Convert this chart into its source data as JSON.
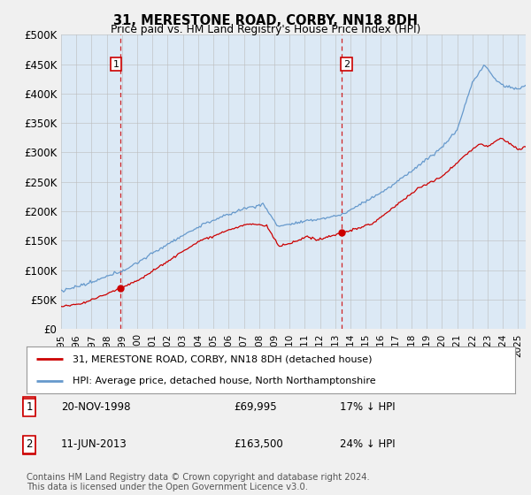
{
  "title": "31, MERESTONE ROAD, CORBY, NN18 8DH",
  "subtitle": "Price paid vs. HM Land Registry's House Price Index (HPI)",
  "ylabel_ticks": [
    "£0",
    "£50K",
    "£100K",
    "£150K",
    "£200K",
    "£250K",
    "£300K",
    "£350K",
    "£400K",
    "£450K",
    "£500K"
  ],
  "ytick_values": [
    0,
    50000,
    100000,
    150000,
    200000,
    250000,
    300000,
    350000,
    400000,
    450000,
    500000
  ],
  "ylim": [
    0,
    500000
  ],
  "xlim_start": 1995.0,
  "xlim_end": 2025.5,
  "hpi_color": "#6699cc",
  "price_color": "#cc0000",
  "dashed_color": "#cc0000",
  "background_color": "#f0f0f0",
  "plot_bg_color": "#dce9f5",
  "legend_label_red": "31, MERESTONE ROAD, CORBY, NN18 8DH (detached house)",
  "legend_label_blue": "HPI: Average price, detached house, North Northamptonshire",
  "sale1_date": "20-NOV-1998",
  "sale1_price": "£69,995",
  "sale1_hpi": "17% ↓ HPI",
  "sale1_year": 1998.9,
  "sale1_value": 69995,
  "sale2_date": "11-JUN-2013",
  "sale2_price": "£163,500",
  "sale2_hpi": "24% ↓ HPI",
  "sale2_year": 2013.44,
  "sale2_value": 163500,
  "footnote": "Contains HM Land Registry data © Crown copyright and database right 2024.\nThis data is licensed under the Open Government Licence v3.0.",
  "xtick_years": [
    1995,
    1996,
    1997,
    1998,
    1999,
    2000,
    2001,
    2002,
    2003,
    2004,
    2005,
    2006,
    2007,
    2008,
    2009,
    2010,
    2011,
    2012,
    2013,
    2014,
    2015,
    2016,
    2017,
    2018,
    2019,
    2020,
    2021,
    2022,
    2023,
    2024,
    2025
  ]
}
